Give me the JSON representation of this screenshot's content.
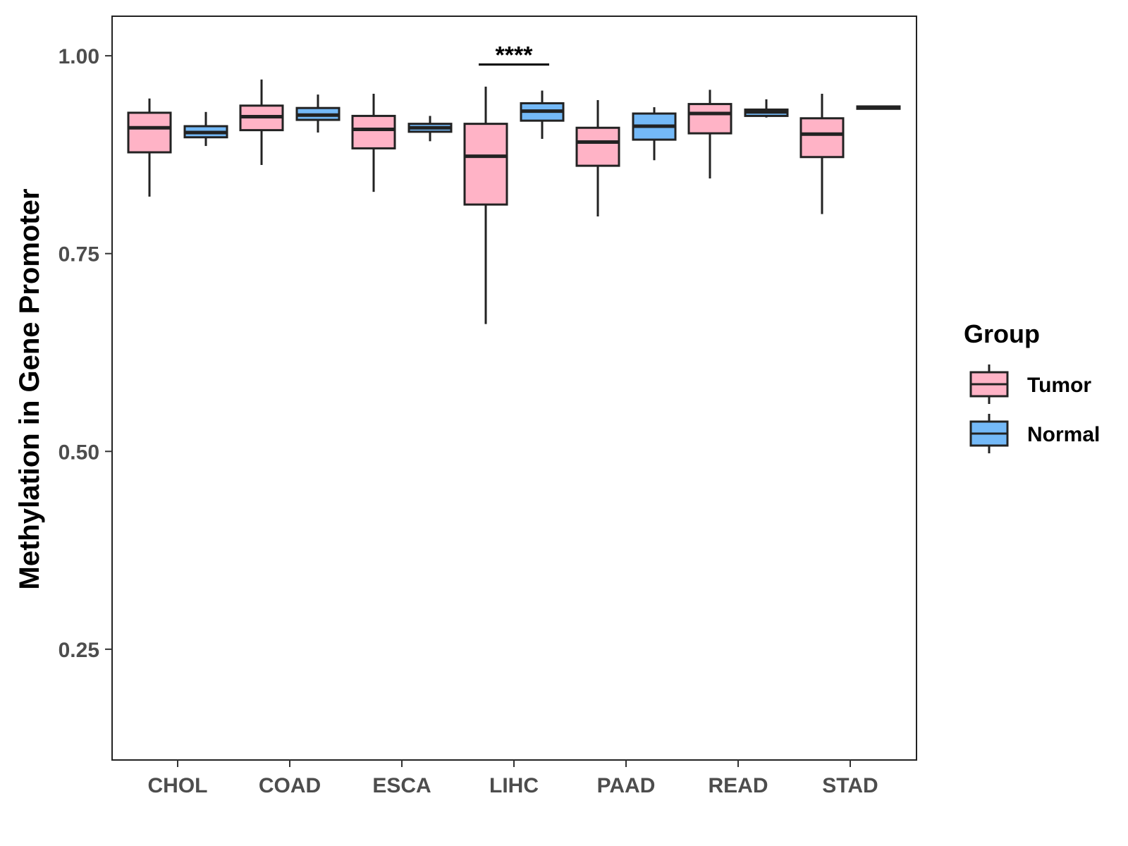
{
  "chart_data": {
    "type": "boxplot",
    "title": "",
    "xlabel": "",
    "ylabel": "Methylation in Gene Promoter",
    "ylim": [
      0.11,
      1.05
    ],
    "yticks": [
      0.25,
      0.5,
      0.75,
      1.0
    ],
    "ytick_labels": [
      "0.25",
      "0.50",
      "0.75",
      "1.00"
    ],
    "grid": false,
    "categories": [
      "CHOL",
      "COAD",
      "ESCA",
      "LIHC",
      "PAAD",
      "READ",
      "STAD"
    ],
    "legend": {
      "title": "Group",
      "position": "right",
      "entries": [
        {
          "name": "Tumor",
          "color": "#ffb3c6"
        },
        {
          "name": "Normal",
          "color": "#74b9f7"
        }
      ]
    },
    "series": [
      {
        "name": "Tumor",
        "color": "#ffb3c6",
        "boxes": [
          {
            "category": "CHOL",
            "whisker_low": 0.822,
            "q1": 0.878,
            "median": 0.909,
            "q3": 0.928,
            "whisker_high": 0.946
          },
          {
            "category": "COAD",
            "whisker_low": 0.862,
            "q1": 0.906,
            "median": 0.923,
            "q3": 0.937,
            "whisker_high": 0.97
          },
          {
            "category": "ESCA",
            "whisker_low": 0.828,
            "q1": 0.883,
            "median": 0.907,
            "q3": 0.924,
            "whisker_high": 0.952
          },
          {
            "category": "LIHC",
            "whisker_low": 0.661,
            "q1": 0.812,
            "median": 0.873,
            "q3": 0.914,
            "whisker_high": 0.961
          },
          {
            "category": "PAAD",
            "whisker_low": 0.797,
            "q1": 0.861,
            "median": 0.891,
            "q3": 0.909,
            "whisker_high": 0.944
          },
          {
            "category": "READ",
            "whisker_low": 0.845,
            "q1": 0.902,
            "median": 0.927,
            "q3": 0.939,
            "whisker_high": 0.957
          },
          {
            "category": "STAD",
            "whisker_low": 0.8,
            "q1": 0.872,
            "median": 0.901,
            "q3": 0.921,
            "whisker_high": 0.952
          }
        ]
      },
      {
        "name": "Normal",
        "color": "#74b9f7",
        "boxes": [
          {
            "category": "CHOL",
            "whisker_low": 0.886,
            "q1": 0.897,
            "median": 0.903,
            "q3": 0.911,
            "whisker_high": 0.929
          },
          {
            "category": "COAD",
            "whisker_low": 0.903,
            "q1": 0.919,
            "median": 0.925,
            "q3": 0.934,
            "whisker_high": 0.951
          },
          {
            "category": "ESCA",
            "whisker_low": 0.892,
            "q1": 0.904,
            "median": 0.909,
            "q3": 0.914,
            "whisker_high": 0.924
          },
          {
            "category": "LIHC",
            "whisker_low": 0.895,
            "q1": 0.918,
            "median": 0.93,
            "q3": 0.94,
            "whisker_high": 0.956
          },
          {
            "category": "PAAD",
            "whisker_low": 0.868,
            "q1": 0.894,
            "median": 0.911,
            "q3": 0.927,
            "whisker_high": 0.935
          },
          {
            "category": "READ",
            "whisker_low": 0.922,
            "q1": 0.924,
            "median": 0.929,
            "q3": 0.932,
            "whisker_high": 0.945
          },
          {
            "category": "STAD",
            "whisker_low": 0.932,
            "q1": 0.933,
            "median": 0.935,
            "q3": 0.936,
            "whisker_high": 0.937
          }
        ]
      }
    ],
    "annotations": [
      {
        "category": "LIHC",
        "label": "****",
        "y": 0.989
      }
    ]
  },
  "style": {
    "line_color": "#222222",
    "frame_color": "#222222",
    "tick_color": "#333333",
    "tick_label_color": "#4d4d4d",
    "title_color": "#000000"
  }
}
